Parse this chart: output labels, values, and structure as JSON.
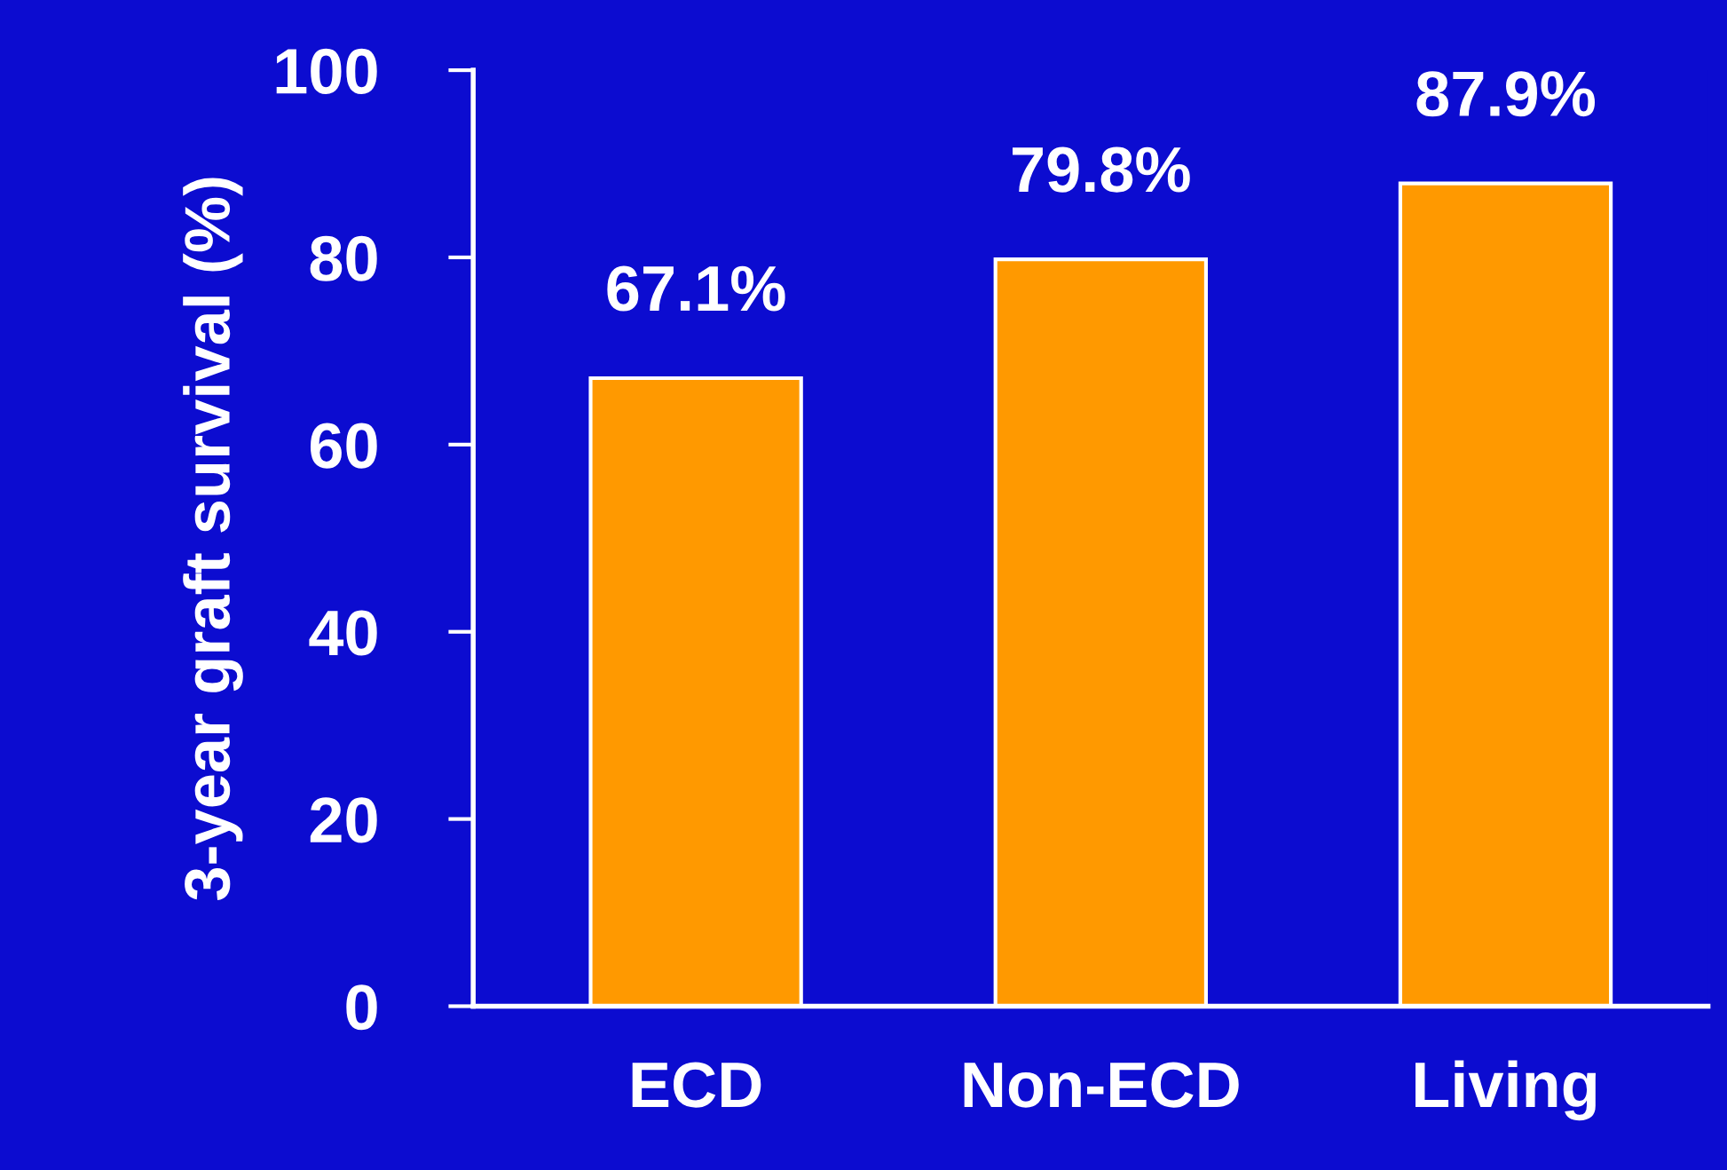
{
  "chart_data": {
    "type": "bar",
    "ylabel": "3-year graft survival (%)",
    "categories": [
      "ECD",
      "Non-ECD",
      "Living"
    ],
    "values": [
      67.1,
      79.8,
      87.9
    ],
    "value_labels": [
      "67.1%",
      "79.8%",
      "87.9%"
    ],
    "color": "#ff9900",
    "ylim": [
      0,
      100
    ],
    "yticks": [
      0,
      20,
      40,
      60,
      80,
      100
    ],
    "grid": false,
    "legend": false
  }
}
